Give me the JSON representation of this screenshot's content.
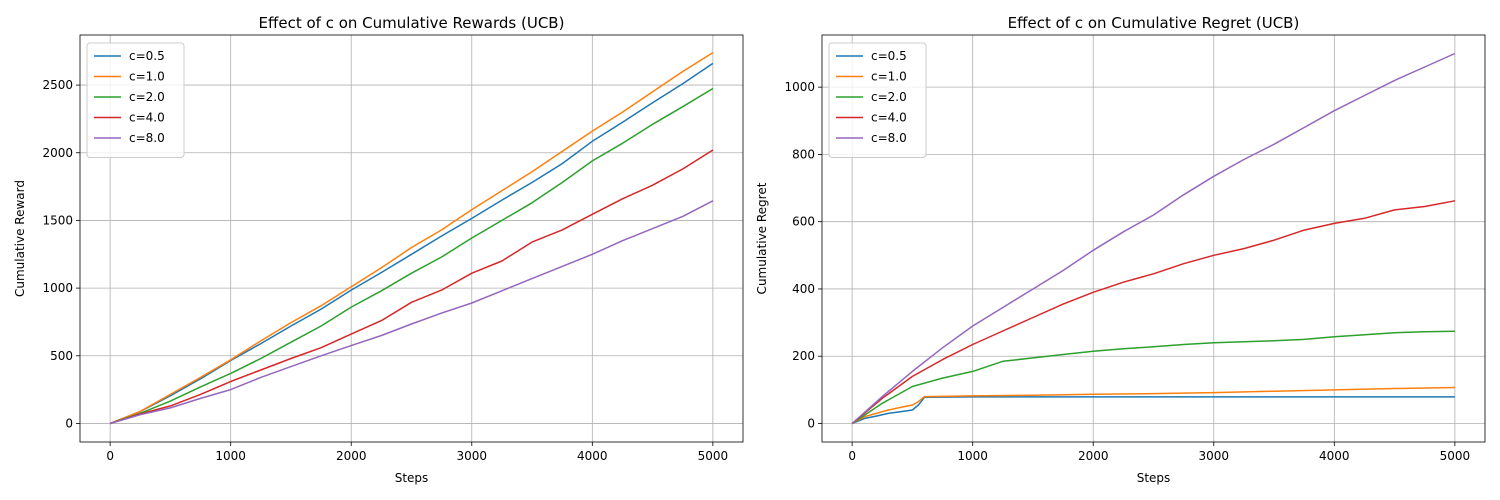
{
  "chart_data": [
    {
      "type": "line",
      "title": "Effect of c on Cumulative Rewards (UCB)",
      "xlabel": "Steps",
      "ylabel": "Cumulative Reward",
      "xlim": [
        -250,
        5250
      ],
      "ylim": [
        -137,
        2870
      ],
      "xticks": [
        0,
        1000,
        2000,
        3000,
        4000,
        5000
      ],
      "yticks": [
        0,
        500,
        1000,
        1500,
        2000,
        2500
      ],
      "grid": true,
      "legend": "upper-left",
      "series": [
        {
          "name": "c=0.5",
          "color": "#1f77b4",
          "x": [
            0,
            250,
            500,
            750,
            1000,
            1250,
            1500,
            1750,
            2000,
            2250,
            2500,
            2750,
            3000,
            3250,
            3500,
            3750,
            4000,
            4250,
            4500,
            4750,
            5000
          ],
          "y": [
            0,
            88,
            205,
            330,
            465,
            590,
            720,
            845,
            985,
            1115,
            1250,
            1385,
            1515,
            1650,
            1780,
            1920,
            2085,
            2225,
            2370,
            2510,
            2660
          ]
        },
        {
          "name": "c=1.0",
          "color": "#ff7f0e",
          "x": [
            0,
            250,
            500,
            750,
            1000,
            1250,
            1500,
            1750,
            2000,
            2250,
            2500,
            2750,
            3000,
            3250,
            3500,
            3750,
            4000,
            4250,
            4500,
            4750,
            5000
          ],
          "y": [
            0,
            90,
            215,
            340,
            470,
            610,
            745,
            870,
            1010,
            1150,
            1300,
            1430,
            1580,
            1720,
            1860,
            2010,
            2160,
            2300,
            2450,
            2600,
            2740
          ]
        },
        {
          "name": "c=2.0",
          "color": "#2ca02c",
          "x": [
            0,
            250,
            500,
            750,
            1000,
            1250,
            1500,
            1750,
            2000,
            2250,
            2500,
            2750,
            3000,
            3250,
            3500,
            3750,
            4000,
            4250,
            4500,
            4750,
            5000
          ],
          "y": [
            0,
            75,
            165,
            270,
            370,
            480,
            600,
            720,
            860,
            980,
            1110,
            1230,
            1370,
            1500,
            1630,
            1780,
            1940,
            2070,
            2210,
            2340,
            2475
          ]
        },
        {
          "name": "c=4.0",
          "color": "#d62728",
          "x": [
            0,
            250,
            500,
            750,
            1000,
            1250,
            1500,
            1750,
            2000,
            2250,
            2500,
            2750,
            3000,
            3250,
            3500,
            3750,
            4000,
            4250,
            4500,
            4750,
            5000
          ],
          "y": [
            0,
            70,
            130,
            215,
            310,
            395,
            480,
            560,
            660,
            760,
            895,
            985,
            1110,
            1200,
            1340,
            1430,
            1545,
            1660,
            1760,
            1880,
            2020
          ]
        },
        {
          "name": "c=8.0",
          "color": "#9467bd",
          "x": [
            0,
            250,
            500,
            750,
            1000,
            1250,
            1500,
            1750,
            2000,
            2250,
            2500,
            2750,
            3000,
            3250,
            3500,
            3750,
            4000,
            4250,
            4500,
            4750,
            5000
          ],
          "y": [
            0,
            65,
            115,
            185,
            250,
            340,
            420,
            500,
            575,
            650,
            735,
            815,
            890,
            980,
            1070,
            1160,
            1250,
            1350,
            1440,
            1530,
            1645
          ]
        }
      ]
    },
    {
      "type": "line",
      "title": "Effect of c on Cumulative Regret (UCB)",
      "xlabel": "Steps",
      "ylabel": "Cumulative Regret",
      "xlim": [
        -250,
        5250
      ],
      "ylim": [
        -55,
        1155
      ],
      "xticks": [
        0,
        1000,
        2000,
        3000,
        4000,
        5000
      ],
      "yticks": [
        0,
        200,
        400,
        600,
        800,
        1000
      ],
      "grid": true,
      "legend": "upper-left",
      "series": [
        {
          "name": "c=0.5",
          "color": "#1f77b4",
          "x": [
            0,
            100,
            200,
            300,
            400,
            500,
            550,
            600,
            1000,
            2000,
            3000,
            4000,
            5000
          ],
          "y": [
            0,
            15,
            22,
            30,
            35,
            40,
            55,
            78,
            79,
            79,
            79,
            79,
            79
          ]
        },
        {
          "name": "c=1.0",
          "color": "#ff7f0e",
          "x": [
            0,
            100,
            200,
            300,
            400,
            500,
            550,
            600,
            1000,
            1500,
            2000,
            2500,
            3000,
            3500,
            4000,
            4500,
            5000
          ],
          "y": [
            0,
            20,
            30,
            40,
            48,
            55,
            65,
            80,
            82,
            84,
            87,
            89,
            92,
            96,
            100,
            104,
            107
          ]
        },
        {
          "name": "c=2.0",
          "color": "#2ca02c",
          "x": [
            0,
            250,
            500,
            750,
            1000,
            1250,
            1500,
            1750,
            2000,
            2250,
            2500,
            2750,
            3000,
            3250,
            3500,
            3750,
            4000,
            4250,
            4500,
            4750,
            5000
          ],
          "y": [
            0,
            60,
            110,
            135,
            155,
            185,
            195,
            205,
            215,
            222,
            228,
            235,
            240,
            243,
            246,
            250,
            258,
            264,
            270,
            273,
            274
          ]
        },
        {
          "name": "c=4.0",
          "color": "#d62728",
          "x": [
            0,
            250,
            500,
            750,
            1000,
            1250,
            1500,
            1750,
            2000,
            2250,
            2500,
            2750,
            3000,
            3250,
            3500,
            3750,
            4000,
            4250,
            4500,
            4750,
            5000
          ],
          "y": [
            0,
            75,
            140,
            190,
            235,
            275,
            315,
            355,
            390,
            420,
            445,
            475,
            500,
            520,
            545,
            575,
            595,
            610,
            635,
            645,
            662
          ]
        },
        {
          "name": "c=8.0",
          "color": "#9467bd",
          "x": [
            0,
            250,
            500,
            750,
            1000,
            1250,
            1500,
            1750,
            2000,
            2250,
            2500,
            2750,
            3000,
            3250,
            3500,
            3750,
            4000,
            4250,
            4500,
            4750,
            5000
          ],
          "y": [
            0,
            80,
            155,
            225,
            290,
            345,
            400,
            455,
            515,
            570,
            620,
            680,
            735,
            785,
            830,
            880,
            930,
            975,
            1020,
            1060,
            1100
          ]
        }
      ]
    }
  ]
}
